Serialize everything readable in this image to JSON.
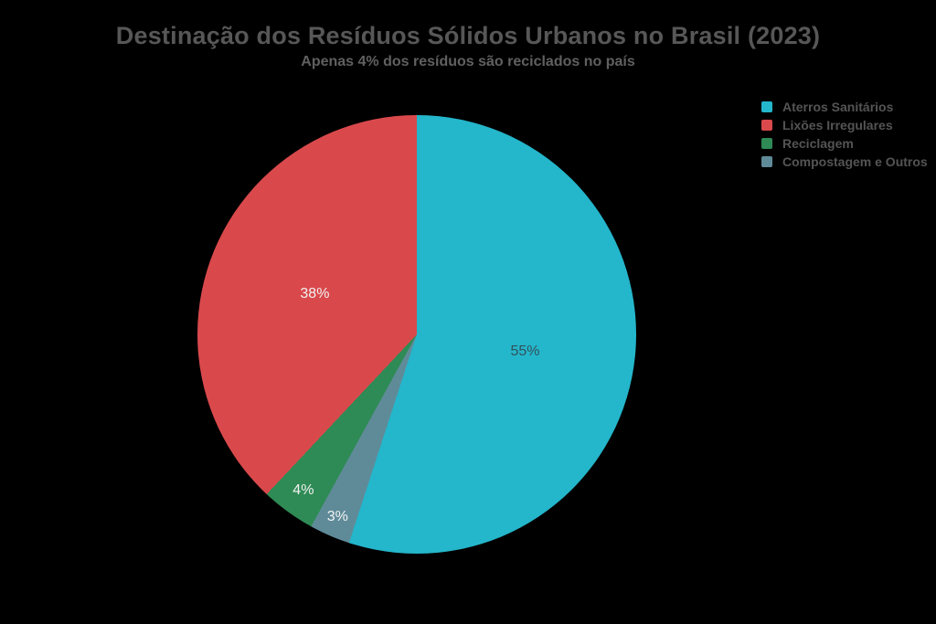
{
  "page": {
    "background_color": "#000000"
  },
  "chart_data": {
    "type": "pie",
    "title": "Destinação dos Resíduos Sólidos Urbanos no Brasil (2023)",
    "subtitle": "Apenas 4% dos resíduos são reciclados no país",
    "title_color": "#575757",
    "subtitle_color": "#606060",
    "legend_text_color": "#545454",
    "legend_position": "top-right",
    "start_angle": "top",
    "direction": "clockwise",
    "clockwise_order": [
      0,
      3,
      2,
      1
    ],
    "slices": [
      {
        "label": "Aterros Sanitários",
        "value": 55,
        "pct_label": "55%",
        "color": "#24b6cb",
        "label_color": "#31535c",
        "label_r": 0.5
      },
      {
        "label": "Lixões Irregulares",
        "value": 38,
        "pct_label": "38%",
        "color": "#d9494c",
        "label_color": "#f2f2f2",
        "label_r": 0.5
      },
      {
        "label": "Reciclagem",
        "value": 4,
        "pct_label": "4%",
        "color": "#2f8b55",
        "label_color": "#f2f2f2",
        "label_r": 0.88
      },
      {
        "label": "Compostagem e Outros",
        "value": 3,
        "pct_label": "3%",
        "color": "#5f8b99",
        "label_color": "#f2f2f2",
        "label_r": 0.91
      }
    ]
  }
}
